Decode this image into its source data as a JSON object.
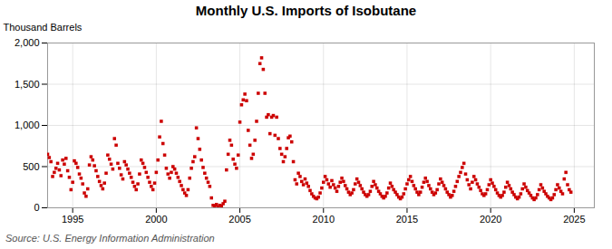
{
  "chart_data": {
    "type": "scatter",
    "title": "Monthly U.S. Imports of Isobutane",
    "ylabel": "Thousand Barrels",
    "annotation": "Source: U.S. Energy Information Administration",
    "color": "#cc0000",
    "marker": "square",
    "grid": true,
    "xlim": [
      1993.5,
      2026.2
    ],
    "ylim": [
      0,
      2000
    ],
    "xticks": [
      1995,
      2000,
      2005,
      2010,
      2015,
      2020,
      2025
    ],
    "yticks": [
      0,
      500,
      {
        "value": 1000,
        "label": "1,000"
      },
      {
        "value": 1500,
        "label": "1,500"
      },
      {
        "value": 2000,
        "label": "2,000"
      }
    ],
    "x": [
      1993.5,
      1993.6,
      1993.7,
      1993.8,
      1993.9,
      1994.0,
      1994.1,
      1994.2,
      1994.3,
      1994.4,
      1994.5,
      1994.6,
      1994.7,
      1994.8,
      1994.9,
      1995.0,
      1995.1,
      1995.2,
      1995.3,
      1995.4,
      1995.5,
      1995.6,
      1995.7,
      1995.8,
      1995.9,
      1996.0,
      1996.1,
      1996.2,
      1996.3,
      1996.4,
      1996.5,
      1996.6,
      1996.7,
      1996.8,
      1996.9,
      1997.0,
      1997.1,
      1997.2,
      1997.3,
      1997.4,
      1997.5,
      1997.6,
      1997.7,
      1997.8,
      1997.9,
      1998.0,
      1998.1,
      1998.2,
      1998.3,
      1998.4,
      1998.5,
      1998.6,
      1998.7,
      1998.8,
      1998.9,
      1999.0,
      1999.1,
      1999.2,
      1999.3,
      1999.4,
      1999.5,
      1999.6,
      1999.7,
      1999.8,
      1999.9,
      2000.0,
      2000.1,
      2000.2,
      2000.3,
      2000.4,
      2000.5,
      2000.6,
      2000.7,
      2000.8,
      2000.9,
      2001.0,
      2001.1,
      2001.2,
      2001.3,
      2001.4,
      2001.5,
      2001.6,
      2001.7,
      2001.8,
      2001.9,
      2002.0,
      2002.1,
      2002.2,
      2002.3,
      2002.4,
      2002.5,
      2002.6,
      2002.7,
      2002.8,
      2002.9,
      2003.0,
      2003.1,
      2003.2,
      2003.3,
      2003.4,
      2003.5,
      2003.6,
      2003.7,
      2003.8,
      2003.9,
      2004.0,
      2004.1,
      2004.2,
      2004.3,
      2004.4,
      2004.5,
      2004.6,
      2004.7,
      2004.8,
      2004.9,
      2005.0,
      2005.1,
      2005.2,
      2005.3,
      2005.4,
      2005.5,
      2005.6,
      2005.7,
      2005.8,
      2005.9,
      2006.0,
      2006.1,
      2006.2,
      2006.3,
      2006.4,
      2006.5,
      2006.6,
      2006.7,
      2006.8,
      2006.9,
      2007.0,
      2007.1,
      2007.2,
      2007.3,
      2007.4,
      2007.5,
      2007.6,
      2007.7,
      2007.8,
      2007.9,
      2008.0,
      2008.1,
      2008.2,
      2008.3,
      2008.4,
      2008.5,
      2008.6,
      2008.7,
      2008.8,
      2008.9,
      2009.0,
      2009.1,
      2009.2,
      2009.3,
      2009.4,
      2009.5,
      2009.6,
      2009.7,
      2009.8,
      2009.9,
      2010.0,
      2010.1,
      2010.2,
      2010.3,
      2010.4,
      2010.5,
      2010.6,
      2010.7,
      2010.8,
      2010.9,
      2011.0,
      2011.1,
      2011.2,
      2011.3,
      2011.4,
      2011.5,
      2011.6,
      2011.7,
      2011.8,
      2011.9,
      2012.0,
      2012.1,
      2012.2,
      2012.3,
      2012.4,
      2012.5,
      2012.6,
      2012.7,
      2012.8,
      2012.9,
      2013.0,
      2013.1,
      2013.2,
      2013.3,
      2013.4,
      2013.5,
      2013.6,
      2013.7,
      2013.8,
      2013.9,
      2014.0,
      2014.1,
      2014.2,
      2014.3,
      2014.4,
      2014.5,
      2014.6,
      2014.7,
      2014.8,
      2014.9,
      2015.0,
      2015.1,
      2015.2,
      2015.3,
      2015.4,
      2015.5,
      2015.6,
      2015.7,
      2015.8,
      2015.9,
      2016.0,
      2016.1,
      2016.2,
      2016.3,
      2016.4,
      2016.5,
      2016.6,
      2016.7,
      2016.8,
      2016.9,
      2017.0,
      2017.1,
      2017.2,
      2017.3,
      2017.4,
      2017.5,
      2017.6,
      2017.7,
      2017.8,
      2017.9,
      2018.0,
      2018.1,
      2018.2,
      2018.3,
      2018.4,
      2018.5,
      2018.6,
      2018.7,
      2018.8,
      2018.9,
      2019.0,
      2019.1,
      2019.2,
      2019.3,
      2019.4,
      2019.5,
      2019.6,
      2019.7,
      2019.8,
      2019.9,
      2020.0,
      2020.1,
      2020.2,
      2020.3,
      2020.4,
      2020.5,
      2020.6,
      2020.7,
      2020.8,
      2020.9,
      2021.0,
      2021.1,
      2021.2,
      2021.3,
      2021.4,
      2021.5,
      2021.6,
      2021.7,
      2021.8,
      2021.9,
      2022.0,
      2022.1,
      2022.2,
      2022.3,
      2022.4,
      2022.5,
      2022.6,
      2022.7,
      2022.8,
      2022.9,
      2023.0,
      2023.1,
      2023.2,
      2023.3,
      2023.4,
      2023.5,
      2023.6,
      2023.7,
      2023.8,
      2023.9,
      2024.0,
      2024.1,
      2024.2,
      2024.3,
      2024.4,
      2024.5,
      2024.6,
      2024.7,
      2024.8
    ],
    "values": [
      650,
      610,
      560,
      380,
      430,
      480,
      540,
      460,
      390,
      580,
      530,
      600,
      450,
      370,
      220,
      310,
      570,
      540,
      490,
      410,
      360,
      290,
      180,
      140,
      230,
      520,
      620,
      580,
      510,
      450,
      380,
      320,
      270,
      230,
      300,
      420,
      640,
      590,
      530,
      470,
      840,
      760,
      540,
      480,
      400,
      350,
      560,
      520,
      470,
      420,
      370,
      310,
      260,
      220,
      290,
      410,
      580,
      540,
      490,
      430,
      370,
      310,
      260,
      220,
      300,
      430,
      580,
      860,
      1050,
      780,
      640,
      480,
      410,
      360,
      430,
      500,
      470,
      420,
      370,
      320,
      270,
      220,
      180,
      150,
      220,
      360,
      480,
      560,
      620,
      970,
      840,
      710,
      580,
      490,
      420,
      360,
      310,
      260,
      120,
      30,
      20,
      40,
      10,
      30,
      20,
      50,
      80,
      460,
      650,
      820,
      760,
      590,
      530,
      480,
      640,
      1040,
      1250,
      1310,
      1380,
      1300,
      940,
      760,
      600,
      650,
      820,
      1050,
      1390,
      1750,
      1820,
      1680,
      1390,
      1100,
      1130,
      900,
      1100,
      1120,
      880,
      1100,
      840,
      720,
      650,
      560,
      620,
      720,
      850,
      870,
      800,
      560,
      340,
      290,
      420,
      380,
      320,
      280,
      350,
      300,
      260,
      210,
      170,
      140,
      120,
      110,
      130,
      180,
      240,
      310,
      380,
      340,
      290,
      250,
      330,
      280,
      240,
      200,
      260,
      310,
      360,
      320,
      270,
      230,
      190,
      160,
      180,
      220,
      290,
      350,
      310,
      270,
      230,
      190,
      160,
      140,
      160,
      200,
      260,
      320,
      280,
      240,
      200,
      170,
      140,
      120,
      140,
      180,
      240,
      300,
      260,
      220,
      190,
      160,
      130,
      110,
      130,
      170,
      230,
      290,
      340,
      380,
      320,
      270,
      230,
      190,
      160,
      190,
      250,
      310,
      360,
      320,
      270,
      230,
      190,
      160,
      180,
      220,
      290,
      350,
      310,
      270,
      230,
      190,
      160,
      130,
      150,
      200,
      260,
      320,
      380,
      430,
      490,
      540,
      410,
      340,
      280,
      230,
      310,
      380,
      340,
      290,
      250,
      210,
      170,
      150,
      170,
      220,
      280,
      340,
      300,
      260,
      220,
      180,
      150,
      130,
      150,
      190,
      250,
      310,
      270,
      230,
      190,
      160,
      130,
      110,
      130,
      170,
      230,
      290,
      250,
      210,
      180,
      150,
      120,
      100,
      120,
      160,
      220,
      280,
      240,
      200,
      170,
      140,
      120,
      100,
      120,
      160,
      220,
      280,
      240,
      200,
      170,
      350,
      430,
      280,
      220,
      190
    ]
  }
}
